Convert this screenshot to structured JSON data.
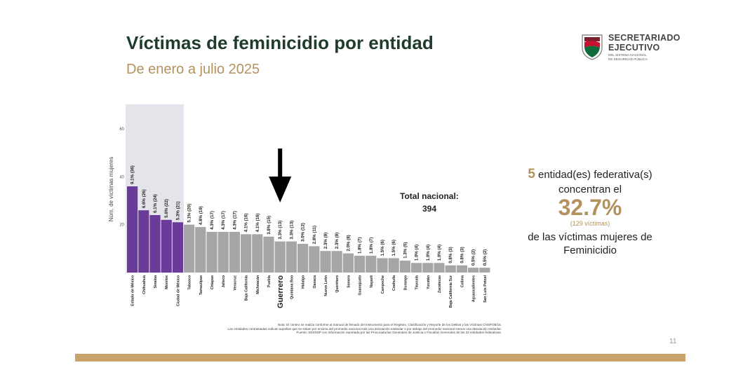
{
  "slide": {
    "title": "Víctimas de feminicidio por entidad",
    "subtitle": "De enero a julio 2025",
    "page_number": "11"
  },
  "logo": {
    "line1": "SECRETARIADO",
    "line2": "EJECUTIVO",
    "line3": "DEL SISTEMA NACIONAL",
    "line4": "DE SEGURIDAD PÚBLICA",
    "icon": "emblem-icon"
  },
  "colors": {
    "title": "#1f3b2c",
    "accent": "#b3925e",
    "highlight_bar": "#6a3b98",
    "regular_bar": "#a6a6a6",
    "highlight_bg": "#e4e4ea",
    "bottom_bar": "#c9a16b"
  },
  "annotation": {
    "arrow_target": "Guerrero",
    "total_label": "Total nacional:",
    "total_value": "394"
  },
  "summary": {
    "count": "5",
    "line1": "entidad(es)   federativa(s)",
    "line2": "concentran el",
    "percent": "32.7%",
    "victims": "(129  víctimas)",
    "line3": "de las  víctimas  mujeres de",
    "line4": "Feminicidio"
  },
  "note": {
    "line1": "Nota: El conteo se realiza conforme al manual de llenado del Instrumento para el Registro, Clasificación y Reporte de los Delitos y las Víctimas CNSP/38/15.",
    "line2": "Las entidades contrastadas indican aquellas que se sitúan por encima del promedio nacional más una desviación estándar o por debajo del promedio nacional menos una desviación estándar.",
    "line3": "Fuente: SESNSP con información reportada por las Procuradurías Generales de Justicia o Fiscalías Generales de las 32 entidades federativas."
  },
  "chart_data": {
    "type": "bar",
    "ylabel": "Núm. de víctimas mujeres",
    "ylim": [
      0,
      60
    ],
    "yticks": [
      20,
      40,
      60
    ],
    "highlight_count": 5,
    "categories": [
      "Estado de México",
      "Chihuahua",
      "Sinaloa",
      "Morelos",
      "Ciudad de México",
      "Tabasco",
      "Tamaulipas",
      "Chiapas",
      "Jalisco",
      "Veracruz",
      "Baja California",
      "Michoacán",
      "Puebla",
      "Guerrero",
      "Quintana Roo",
      "Hidalgo",
      "Oaxaca",
      "Nuevo León",
      "Querétaro",
      "Sonora",
      "Guanajuato",
      "Nayarit",
      "Campeche",
      "Coahuila",
      "Durango",
      "Tlaxcala",
      "Yucatán",
      "Zacatecas",
      "Baja California Sur",
      "Colima",
      "Aguascalientes",
      "San Luis Potosí"
    ],
    "values": [
      36,
      26,
      24,
      22,
      21,
      20,
      19,
      17,
      17,
      17,
      16,
      16,
      15,
      13,
      13,
      12,
      11,
      9,
      9,
      8,
      7,
      7,
      6,
      6,
      5,
      4,
      4,
      4,
      3,
      3,
      2,
      2
    ],
    "data_labels": [
      "9.1% (36)",
      "6.6% (26)",
      "6.1% (24)",
      "5.6% (22)",
      "5.3% (21)",
      "5.1% (20)",
      "4.8% (19)",
      "4.3% (17)",
      "4.3% (17)",
      "4.3% (17)",
      "4.1% (16)",
      "4.1% (16)",
      "3.8% (15)",
      "3.3% (13)",
      "3.3% (13)",
      "3.0% (12)",
      "2.8% (11)",
      "2.3% (9)",
      "2.3% (9)",
      "2.0% (8)",
      "1.8% (7)",
      "1.8% (7)",
      "1.5% (6)",
      "1.5% (6)",
      "1.3% (5)",
      "1.0% (4)",
      "1.0% (4)",
      "1.0% (4)",
      "0.8% (3)",
      "0.8% (3)",
      "0.5% (2)",
      "0.5% (2)"
    ]
  }
}
